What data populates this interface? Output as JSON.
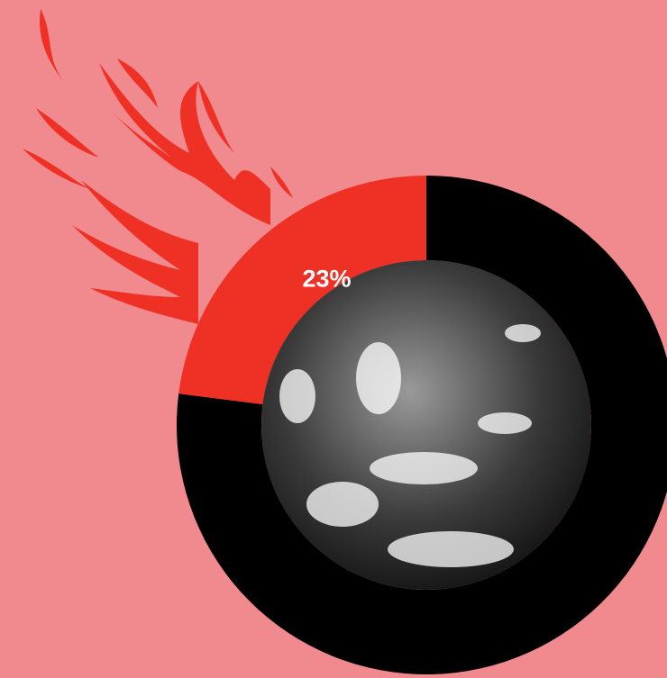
{
  "chart_data": {
    "type": "donut",
    "values": [
      23,
      77
    ],
    "value_labels": [
      "23%",
      null
    ],
    "colors": [
      "#ee3124",
      "#000000"
    ]
  }
}
